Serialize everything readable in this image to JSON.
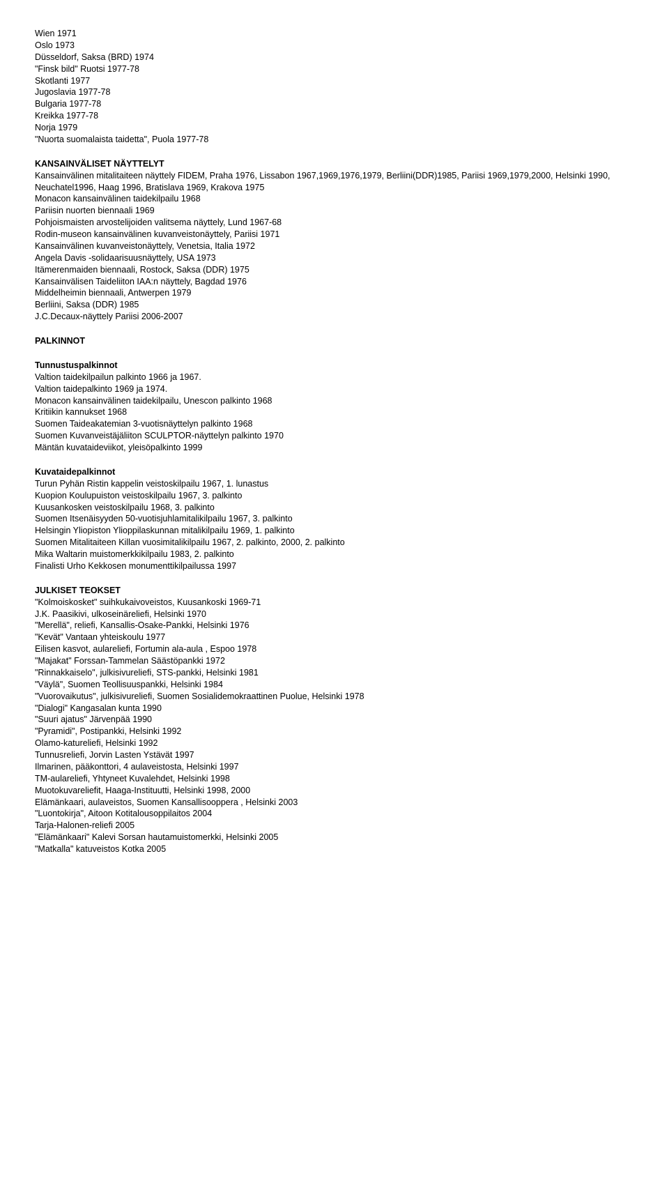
{
  "sections": [
    {
      "type": "lines",
      "lines": [
        "Wien 1971",
        "Oslo 1973",
        "Düsseldorf, Saksa (BRD) 1974",
        "\"Finsk bild\" Ruotsi 1977-78",
        "Skotlanti 1977",
        "Jugoslavia 1977-78",
        "Bulgaria 1977-78",
        "Kreikka 1977-78",
        "Norja 1979",
        "\"Nuorta suomalaista taidetta\", Puola 1977-78"
      ]
    },
    {
      "type": "gap"
    },
    {
      "type": "heading",
      "text": "KANSAINVÄLISET NÄYTTELYT"
    },
    {
      "type": "lines",
      "lines": [
        "Kansainvälinen mitalitaiteen näyttely FIDEM, Praha 1976, Lissabon 1967,1969,1976,1979, Berliini(DDR)1985, Pariisi 1969,1979,2000, Helsinki 1990, Neuchatel1996, Haag 1996, Bratislava 1969, Krakova 1975",
        "Monacon kansainvälinen taidekilpailu 1968",
        "Pariisin nuorten biennaali 1969",
        "Pohjoismaisten arvostelijoiden valitsema näyttely, Lund 1967-68",
        "Rodin-museon kansainvälinen kuvanveistonäyttely, Pariisi 1971",
        "Kansainvälinen kuvanveistonäyttely, Venetsia, Italia 1972",
        "Angela Davis -solidaarisuusnäyttely, USA 1973",
        "Itämerenmaiden biennaali, Rostock, Saksa (DDR) 1975",
        "Kansainvälisen Taideliiton IAA:n näyttely, Bagdad 1976",
        "Middelheimin biennaali, Antwerpen 1979",
        "Berliini, Saksa (DDR) 1985",
        "J.C.Decaux-näyttely Pariisi 2006-2007"
      ]
    },
    {
      "type": "gap"
    },
    {
      "type": "heading",
      "text": "PALKINNOT"
    },
    {
      "type": "gap"
    },
    {
      "type": "heading",
      "text": "Tunnustuspalkinnot"
    },
    {
      "type": "lines",
      "lines": [
        "Valtion taidekilpailun palkinto 1966 ja 1967.",
        "Valtion taidepalkinto 1969 ja 1974.",
        "Monacon kansainvälinen taidekilpailu, Unescon palkinto 1968",
        "Kritiikin kannukset 1968",
        "Suomen Taideakatemian 3-vuotisnäyttelyn palkinto 1968",
        "Suomen Kuvanveistäjäliiton SCULPTOR-näyttelyn palkinto 1970",
        "Mäntän kuvataideviikot, yleisöpalkinto 1999"
      ]
    },
    {
      "type": "gap"
    },
    {
      "type": "heading",
      "text": "Kuvataidepalkinnot"
    },
    {
      "type": "lines",
      "lines": [
        "Turun Pyhän Ristin kappelin veistoskilpailu 1967, 1. lunastus",
        "Kuopion Koulupuiston veistoskilpailu 1967, 3. palkinto",
        "Kuusankosken veistoskilpailu 1968, 3. palkinto",
        "Suomen Itsenäisyyden 50-vuotisjuhlamitalikilpailu 1967, 3. palkinto",
        "Helsingin Yliopiston Ylioppilaskunnan mitalikilpailu 1969, 1. palkinto",
        "Suomen Mitalitaiteen Killan vuosimitalikilpailu 1967, 2. palkinto, 2000, 2. palkinto",
        "Mika Waltarin muistomerkkikilpailu 1983, 2. palkinto",
        "Finalisti Urho Kekkosen monumenttikilpailussa 1997"
      ]
    },
    {
      "type": "gap"
    },
    {
      "type": "heading",
      "text": "JULKISET TEOKSET"
    },
    {
      "type": "lines",
      "lines": [
        "\"Kolmoiskosket\" suihkukaivoveistos, Kuusankoski 1969-71",
        "J.K. Paasikivi, ulkoseinäreliefi, Helsinki 1970",
        "\"Merellä\", reliefi, Kansallis-Osake-Pankki, Helsinki 1976",
        "\"Kevät\" Vantaan yhteiskoulu 1977",
        "Eilisen kasvot, aulareliefi, Fortumin ala-aula , Espoo 1978",
        "\"Majakat\" Forssan-Tammelan Säästöpankki 1972",
        "\"Rinnakkaiselo\", julkisivureliefi, STS-pankki, Helsinki 1981",
        "\"Väylä\", Suomen Teollisuuspankki, Helsinki 1984",
        "\"Vuorovaikutus\", julkisivureliefi, Suomen Sosialidemokraattinen Puolue, Helsinki 1978",
        "\"Dialogi\" Kangasalan kunta 1990",
        "\"Suuri ajatus\" Järvenpää 1990",
        "\"Pyramidi\", Postipankki, Helsinki 1992",
        "Olamo-katureliefi, Helsinki 1992",
        "Tunnusreliefi, Jorvin Lasten Ystävät 1997",
        "Ilmarinen, pääkonttori, 4 aulaveistosta, Helsinki 1997",
        "TM-aulareliefi, Yhtyneet Kuvalehdet, Helsinki 1998",
        "Muotokuvareliefit, Haaga-Instituutti, Helsinki 1998, 2000",
        "Elämänkaari, aulaveistos, Suomen Kansallisooppera , Helsinki 2003",
        "\"Luontokirja\", Aitoon Kotitalousoppilaitos 2004",
        "Tarja-Halonen-reliefi 2005",
        "\"Elämänkaari\" Kalevi Sorsan hautamuistomerkki, Helsinki 2005",
        "\"Matkalla\" katuveistos Kotka 2005"
      ]
    }
  ]
}
